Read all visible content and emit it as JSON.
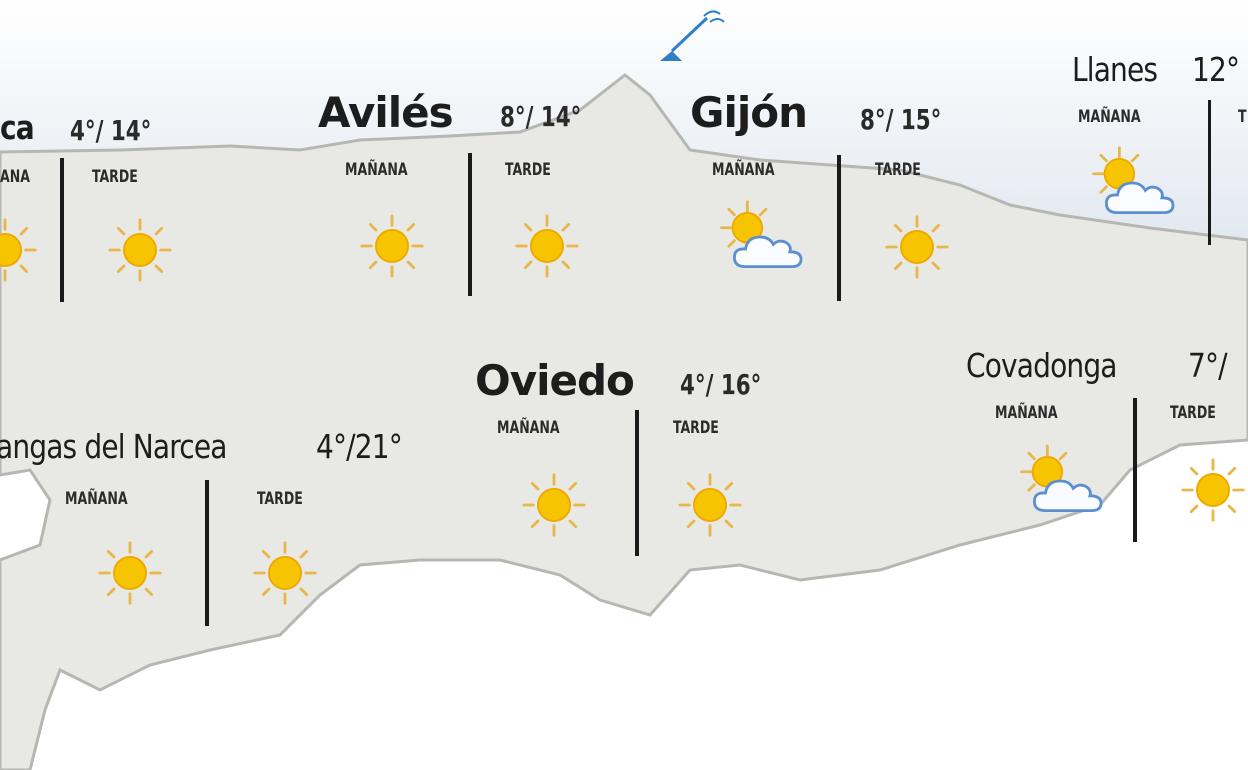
{
  "colors": {
    "land": "#e8e8e5",
    "sea_top": "#dfe6ee",
    "coast": "#b7b7b2",
    "sun": "#f6c400",
    "sun_rays": "#e8b64a",
    "cloud_outline": "#5b8fd0",
    "divider": "#1a1a1a"
  },
  "cities": [
    {
      "name": "ca",
      "temps": "4°/ 14°",
      "morning_label": "ANA",
      "afternoon_label": "TARDE",
      "morning_icon": "sun-icon",
      "afternoon_icon": "sun-icon"
    },
    {
      "name": "Avilés",
      "temps": "8°/ 14°",
      "morning_label": "MAÑANA",
      "afternoon_label": "TARDE",
      "morning_icon": "sun-icon",
      "afternoon_icon": "sun-icon"
    },
    {
      "name": "Gijón",
      "temps": "8°/ 15°",
      "morning_label": "MAÑANA",
      "afternoon_label": "TARDE",
      "morning_icon": "partly-cloudy-icon",
      "afternoon_icon": "sun-icon"
    },
    {
      "name": "Llanes",
      "temps": "12°",
      "morning_label": "MAÑANA",
      "afternoon_label": "T",
      "morning_icon": "partly-cloudy-icon"
    },
    {
      "name": "Oviedo",
      "temps": "4°/ 16°",
      "morning_label": "MAÑANA",
      "afternoon_label": "TARDE",
      "morning_icon": "sun-icon",
      "afternoon_icon": "sun-icon"
    },
    {
      "name": "Covadonga",
      "temps": "7°/",
      "morning_label": "MAÑANA",
      "afternoon_label": "TARDE",
      "morning_icon": "partly-cloudy-icon",
      "afternoon_icon": "sun-icon"
    },
    {
      "name": "angas del Narcea",
      "temps": "4°/21°",
      "morning_label": "MAÑANA",
      "afternoon_label": "TARDE",
      "morning_icon": "sun-icon",
      "afternoon_icon": "sun-icon"
    }
  ],
  "landmark_icon": "lighthouse-icon"
}
